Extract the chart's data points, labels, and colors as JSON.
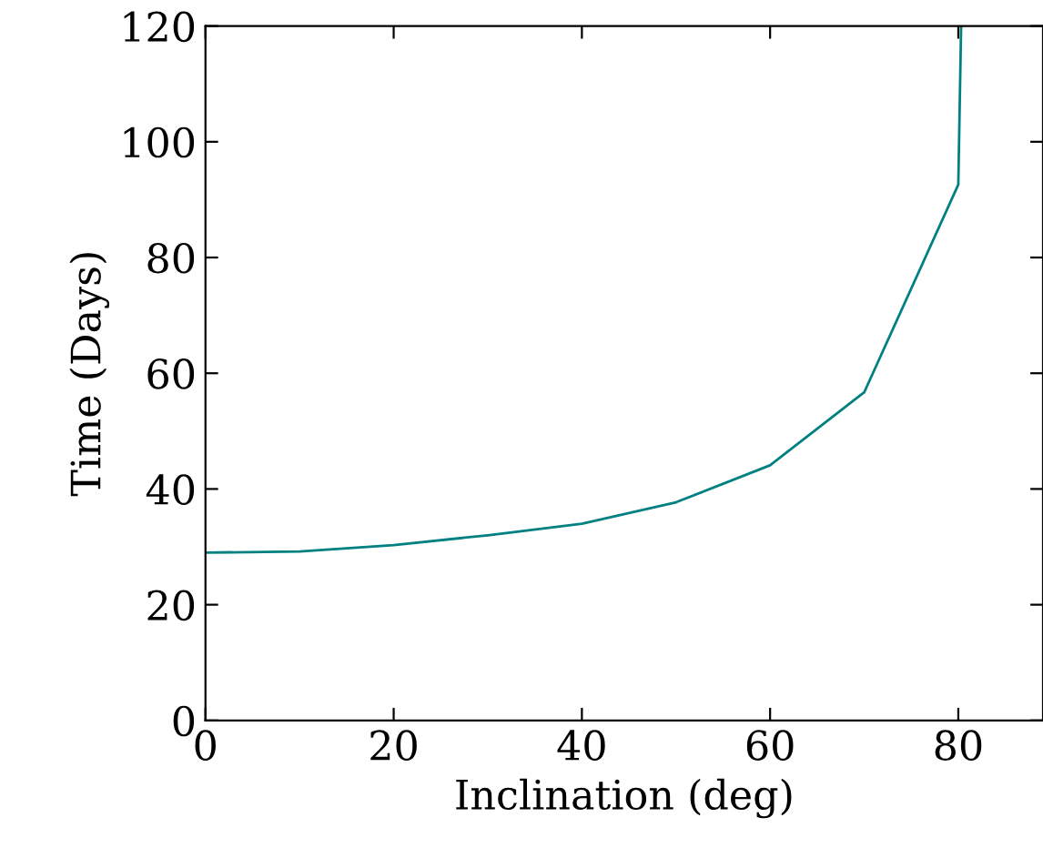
{
  "chart_data": {
    "type": "line",
    "xlabel": "Inclination (deg)",
    "ylabel": "Time (Days)",
    "x": [
      0,
      10,
      20,
      30,
      40,
      50,
      60,
      70,
      80,
      80.3
    ],
    "series": [
      {
        "color": "#008080",
        "values": [
          29.0,
          29.2,
          30.3,
          32.0,
          34.0,
          37.7,
          44.1,
          56.7,
          92.6,
          120
        ]
      }
    ],
    "xlim": [
      0,
      89
    ],
    "xticks": [
      0,
      20,
      40,
      60,
      80
    ],
    "ylim": [
      0,
      120
    ],
    "yticks": [
      0,
      20,
      40,
      60,
      80,
      100,
      120
    ],
    "grid": false,
    "legend": false,
    "marker": "none",
    "line_style": "solid"
  }
}
